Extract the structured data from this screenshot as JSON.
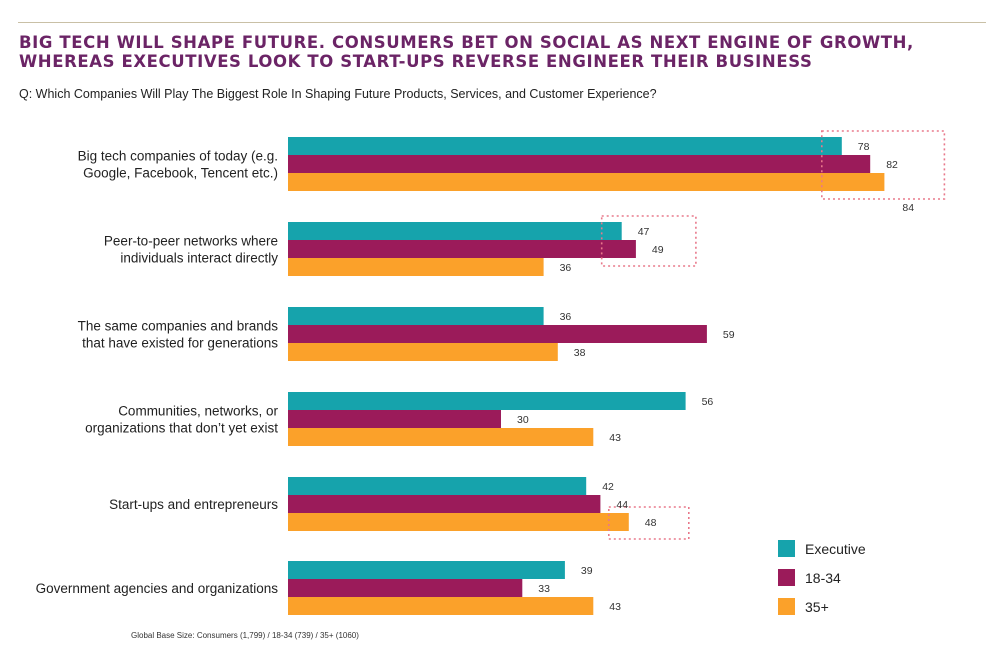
{
  "title": "BIG TECH WILL SHAPE FUTURE. CONSUMERS BET ON SOCIAL AS NEXT ENGINE OF GROWTH, WHEREAS EXECUTIVES LOOK TO START-UPS REVERSE ENGINEER THEIR BUSINESS",
  "question": "Q: Which Companies Will Play The Biggest Role In Shaping Future Products, Services, and Customer Experience?",
  "footnote": "Global Base Size: Consumers (1,799) / 18-34 (739) / 35+ (1060)",
  "chart_data": {
    "type": "bar",
    "orientation": "horizontal",
    "categories": [
      [
        "Big tech companies of today (e.g.",
        "Google, Facebook, Tencent etc.)"
      ],
      [
        "Peer-to-peer networks where",
        "individuals interact directly"
      ],
      [
        "The same companies and brands",
        "that have existed for generations"
      ],
      [
        "Communities, networks, or",
        "organizations that don’t yet exist"
      ],
      [
        "Start-ups and entrepreneurs"
      ],
      [
        "Government agencies and organizations"
      ]
    ],
    "series": [
      {
        "name": "Executive",
        "color": "#16a3ac",
        "values": [
          78,
          47,
          36,
          56,
          42,
          39
        ]
      },
      {
        "name": "18-34",
        "color": "#9b1b5a",
        "values": [
          82,
          49,
          59,
          30,
          44,
          33
        ]
      },
      {
        "name": "35+",
        "color": "#fba12a",
        "values": [
          84,
          36,
          38,
          43,
          48,
          43
        ]
      }
    ],
    "highlights": [
      {
        "category": 0,
        "series": [
          0,
          1,
          2
        ]
      },
      {
        "category": 1,
        "series": [
          0,
          1
        ]
      },
      {
        "category": 4,
        "series": [
          2
        ]
      }
    ],
    "highlight_color": "#e8788a",
    "legend_position": "bottom-right",
    "grid": false
  }
}
